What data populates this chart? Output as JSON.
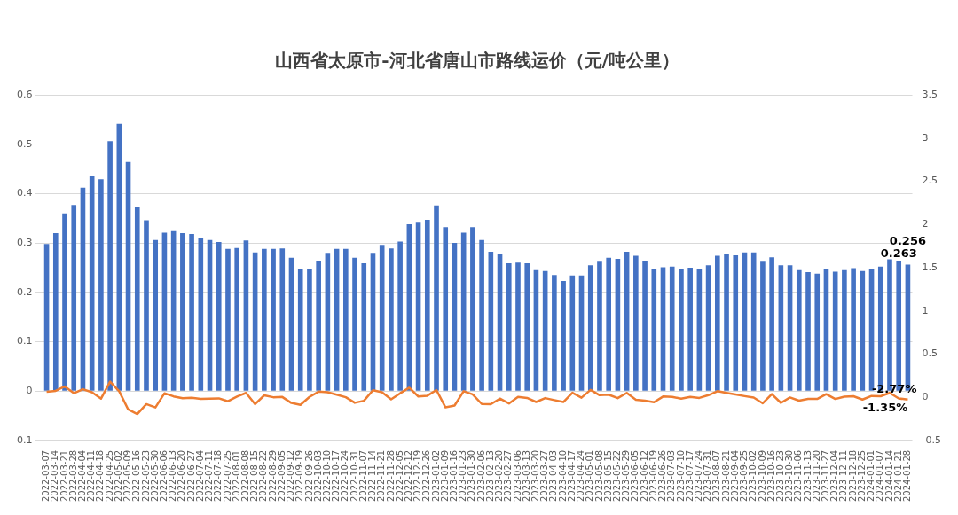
{
  "chart_data": {
    "type": "bar",
    "title": "山西省太原市-河北省唐山市路线运价（元/吨公里）",
    "categories": [
      "2022-03-07",
      "2022-03-14",
      "2022-03-21",
      "2022-03-28",
      "2022-04-04",
      "2022-04-11",
      "2022-04-18",
      "2022-04-25",
      "2022-05-02",
      "2022-05-09",
      "2022-05-16",
      "2022-05-23",
      "2022-05-30",
      "2022-06-06",
      "2022-06-13",
      "2022-06-20",
      "2022-06-27",
      "2022-07-04",
      "2022-07-11",
      "2022-07-18",
      "2022-07-25",
      "2022-08-01",
      "2022-08-08",
      "2022-08-15",
      "2022-08-22",
      "2022-08-29",
      "2022-09-05",
      "2022-09-12",
      "2022-09-19",
      "2022-09-26",
      "2022-10-03",
      "2022-10-10",
      "2022-10-17",
      "2022-10-24",
      "2022-10-31",
      "2022-11-07",
      "2022-11-14",
      "2022-11-21",
      "2022-11-28",
      "2022-12-05",
      "2022-12-12",
      "2022-12-19",
      "2022-12-26",
      "2023-01-02",
      "2023-01-09",
      "2023-01-16",
      "2023-01-23",
      "2023-01-30",
      "2023-02-06",
      "2023-02-13",
      "2023-02-20",
      "2023-02-27",
      "2023-03-06",
      "2023-03-13",
      "2023-03-20",
      "2023-03-27",
      "2023-04-03",
      "2023-04-10",
      "2023-04-17",
      "2023-04-24",
      "2023-05-01",
      "2023-05-08",
      "2023-05-15",
      "2023-05-22",
      "2023-05-29",
      "2023-06-05",
      "2023-06-12",
      "2023-06-19",
      "2023-06-26",
      "2023-07-03",
      "2023-07-10",
      "2023-07-17",
      "2023-07-24",
      "2023-07-31",
      "2023-08-07",
      "2023-08-21",
      "2023-09-04",
      "2023-09-25",
      "2023-10-02",
      "2023-10-09",
      "2023-10-16",
      "2023-10-23",
      "2023-10-30",
      "2023-11-06",
      "2023-11-13",
      "2023-11-20",
      "2023-11-27",
      "2023-12-04",
      "2023-12-11",
      "2023-12-18",
      "2023-12-25",
      "2024-01-01",
      "2024-01-07",
      "2024-01-14",
      "2024-01-21",
      "2024-01-28"
    ],
    "series": [
      {
        "color": "#4472c4",
        "values": [
          0.298,
          0.32,
          0.36,
          0.377,
          0.412,
          0.436,
          0.429,
          0.506,
          0.541,
          0.464,
          0.374,
          0.346,
          0.306,
          0.321,
          0.324,
          0.32,
          0.318,
          0.311,
          0.306,
          0.302,
          0.288,
          0.29,
          0.305,
          0.281,
          0.288,
          0.288,
          0.289,
          0.27,
          0.247,
          0.248,
          0.264,
          0.28,
          0.288,
          0.288,
          0.27,
          0.259,
          0.28,
          0.296,
          0.289,
          0.303,
          0.338,
          0.341,
          0.347,
          0.376,
          0.332,
          0.3,
          0.321,
          0.332,
          0.306,
          0.282,
          0.278,
          0.259,
          0.26,
          0.259,
          0.245,
          0.243,
          0.235,
          0.223,
          0.234,
          0.234,
          0.255,
          0.262,
          0.27,
          0.268,
          0.282,
          0.274,
          0.263,
          0.248,
          0.251,
          0.252,
          0.248,
          0.25,
          0.248,
          0.255,
          0.274,
          0.278,
          0.275,
          0.281,
          0.281,
          0.262,
          0.271,
          0.255,
          0.255,
          0.245,
          0.241,
          0.238,
          0.247,
          0.242,
          0.245,
          0.249,
          0.243,
          0.248,
          0.252,
          0.267,
          0.263,
          0.256
        ],
        "value_labels": [
          null,
          null,
          null,
          null,
          null,
          null,
          null,
          null,
          null,
          null,
          null,
          null,
          null,
          null,
          null,
          null,
          null,
          null,
          null,
          null,
          null,
          null,
          null,
          null,
          null,
          null,
          null,
          null,
          null,
          null,
          null,
          null,
          null,
          null,
          null,
          null,
          null,
          null,
          null,
          null,
          null,
          null,
          null,
          null,
          null,
          null,
          null,
          null,
          null,
          null,
          null,
          null,
          null,
          null,
          null,
          null,
          null,
          null,
          null,
          null,
          null,
          null,
          null,
          null,
          null,
          null,
          null,
          null,
          null,
          null,
          null,
          null,
          null,
          null,
          null,
          null,
          null,
          null,
          null,
          null,
          null,
          null,
          null,
          null,
          null,
          null,
          null,
          null,
          null,
          null,
          null,
          null,
          null,
          null,
          "0.263",
          "0.256"
        ]
      },
      {
        "type": "line",
        "axis": "y2",
        "color": "#ed7d31",
        "values": [
          0.064,
          0.074,
          0.125,
          0.047,
          0.093,
          0.058,
          -0.016,
          0.18,
          0.069,
          -0.142,
          -0.194,
          -0.08,
          -0.118,
          0.046,
          0.01,
          -0.012,
          -0.006,
          -0.02,
          -0.016,
          -0.013,
          -0.046,
          0.007,
          0.05,
          -0.08,
          0.022,
          0,
          0.003,
          -0.066,
          -0.088,
          0.004,
          0.065,
          0.058,
          0.03,
          0,
          -0.064,
          -0.041,
          0.081,
          0.057,
          -0.024,
          0.046,
          0.11,
          0.009,
          0.018,
          0.084,
          -0.117,
          -0.096,
          0.07,
          0.034,
          -0.078,
          -0.08,
          -0.016,
          -0.072,
          0.004,
          -0.008,
          -0.055,
          -0.01,
          -0.033,
          -0.055,
          0.052,
          -0.005,
          0.085,
          0.024,
          0.03,
          -0.01,
          0.05,
          -0.03,
          -0.04,
          -0.058,
          0.008,
          0.004,
          -0.016,
          0.004,
          -0.008,
          0.024,
          0.07,
          0.05,
          0.032,
          0.013,
          -0.004,
          -0.07,
          0.037,
          -0.065,
          -0.003,
          -0.04,
          -0.02,
          -0.02,
          0.036,
          -0.02,
          0.006,
          0.012,
          -0.027,
          0.015,
          0.012,
          0.05,
          -0.0135,
          -0.0277
        ],
        "value_labels": [
          null,
          null,
          null,
          null,
          null,
          null,
          null,
          null,
          null,
          null,
          null,
          null,
          null,
          null,
          null,
          null,
          null,
          null,
          null,
          null,
          null,
          null,
          null,
          null,
          null,
          null,
          null,
          null,
          null,
          null,
          null,
          null,
          null,
          null,
          null,
          null,
          null,
          null,
          null,
          null,
          null,
          null,
          null,
          null,
          null,
          null,
          null,
          null,
          null,
          null,
          null,
          null,
          null,
          null,
          null,
          null,
          null,
          null,
          null,
          null,
          null,
          null,
          null,
          null,
          null,
          null,
          null,
          null,
          null,
          null,
          null,
          null,
          null,
          null,
          null,
          null,
          null,
          null,
          null,
          null,
          null,
          null,
          null,
          null,
          null,
          null,
          null,
          null,
          null,
          null,
          null,
          null,
          null,
          null,
          "-1.35%",
          "-2.77%"
        ]
      }
    ],
    "ylim": [
      -0.1,
      0.6
    ],
    "yticks": [
      -0.1,
      0,
      0.1,
      0.2,
      0.3,
      0.4,
      0.5,
      0.6
    ],
    "y2lim": [
      -0.5,
      3.5
    ],
    "y2ticks": [
      -0.5,
      0,
      0.5,
      1,
      1.5,
      2,
      2.5,
      3,
      3.5
    ],
    "grid": "y",
    "legend": false,
    "marker": "none",
    "line_style": "solid"
  }
}
